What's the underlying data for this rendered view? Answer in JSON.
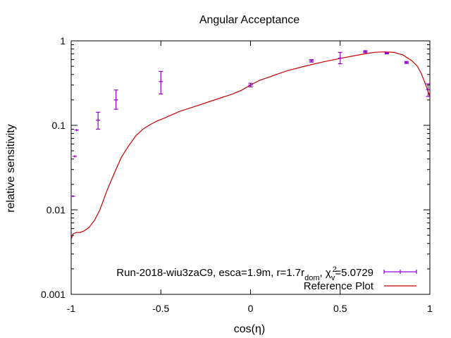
{
  "chart_data": {
    "type": "scatter",
    "title": "Angular Acceptance",
    "xlabel": "cos(η)",
    "ylabel": "relative sensitivity",
    "xlim": [
      -1,
      1
    ],
    "ylim": [
      0.001,
      1
    ],
    "yscale": "log",
    "grid": false,
    "legend_position": "bottom-right",
    "x_ticks": [
      {
        "v": -1,
        "label": "-1"
      },
      {
        "v": -0.5,
        "label": "-0.5"
      },
      {
        "v": 0,
        "label": "0"
      },
      {
        "v": 0.5,
        "label": "0.5"
      },
      {
        "v": 1,
        "label": "1"
      }
    ],
    "y_ticks": [
      {
        "v": 0.001,
        "label": "0.001"
      },
      {
        "v": 0.01,
        "label": "0.01"
      },
      {
        "v": 0.1,
        "label": "0.1"
      },
      {
        "v": 1,
        "label": "1"
      }
    ],
    "series": [
      {
        "legend_parts": {
          "pre": "Run-2018-wiu3zaC9, esca=1.9m, r=1.7r",
          "sub1": "dom",
          "mid": ", χ",
          "sup": "2",
          "sub2": "v",
          "post": "=5.0729"
        },
        "color": "#9400d3",
        "points": [
          {
            "x": -0.99,
            "y": 0.0145,
            "lo": 0.0145,
            "hi": 0.0145
          },
          {
            "x": -0.98,
            "y": 0.043,
            "lo": 0.043,
            "hi": 0.043
          },
          {
            "x": -0.97,
            "y": 0.088,
            "lo": 0.088,
            "hi": 0.088
          },
          {
            "x": -0.85,
            "y": 0.115,
            "lo": 0.09,
            "hi": 0.143
          },
          {
            "x": -0.75,
            "y": 0.2,
            "lo": 0.155,
            "hi": 0.262
          },
          {
            "x": -0.5,
            "y": 0.33,
            "lo": 0.235,
            "hi": 0.435
          },
          {
            "x": 0.0,
            "y": 0.3,
            "lo": 0.285,
            "hi": 0.315
          },
          {
            "x": 0.34,
            "y": 0.58,
            "lo": 0.56,
            "hi": 0.6
          },
          {
            "x": 0.5,
            "y": 0.625,
            "lo": 0.535,
            "hi": 0.73
          },
          {
            "x": 0.64,
            "y": 0.745,
            "lo": 0.725,
            "hi": 0.765
          },
          {
            "x": 0.76,
            "y": 0.715,
            "lo": 0.7,
            "hi": 0.73
          },
          {
            "x": 0.87,
            "y": 0.555,
            "lo": 0.54,
            "hi": 0.57
          },
          {
            "x": 0.99,
            "y": 0.265,
            "lo": 0.22,
            "hi": 0.31
          }
        ]
      },
      {
        "name": "Reference Plot",
        "color": "#cc0000",
        "type": "line",
        "x": [
          -1.0,
          -0.99,
          -0.97,
          -0.95,
          -0.93,
          -0.9,
          -0.87,
          -0.84,
          -0.8,
          -0.76,
          -0.72,
          -0.68,
          -0.64,
          -0.6,
          -0.56,
          -0.52,
          -0.48,
          -0.44,
          -0.4,
          -0.3,
          -0.2,
          -0.1,
          -0.05,
          0.0,
          0.05,
          0.1,
          0.2,
          0.3,
          0.4,
          0.5,
          0.6,
          0.65,
          0.7,
          0.75,
          0.8,
          0.85,
          0.9,
          0.93,
          0.95,
          0.97,
          1.0
        ],
        "y": [
          0.0045,
          0.0052,
          0.0054,
          0.0054,
          0.0056,
          0.0062,
          0.0075,
          0.01,
          0.017,
          0.027,
          0.042,
          0.057,
          0.075,
          0.09,
          0.102,
          0.113,
          0.122,
          0.133,
          0.145,
          0.17,
          0.2,
          0.235,
          0.26,
          0.3,
          0.34,
          0.37,
          0.44,
          0.5,
          0.56,
          0.62,
          0.68,
          0.71,
          0.735,
          0.74,
          0.73,
          0.68,
          0.58,
          0.5,
          0.42,
          0.33,
          0.22
        ]
      }
    ]
  }
}
